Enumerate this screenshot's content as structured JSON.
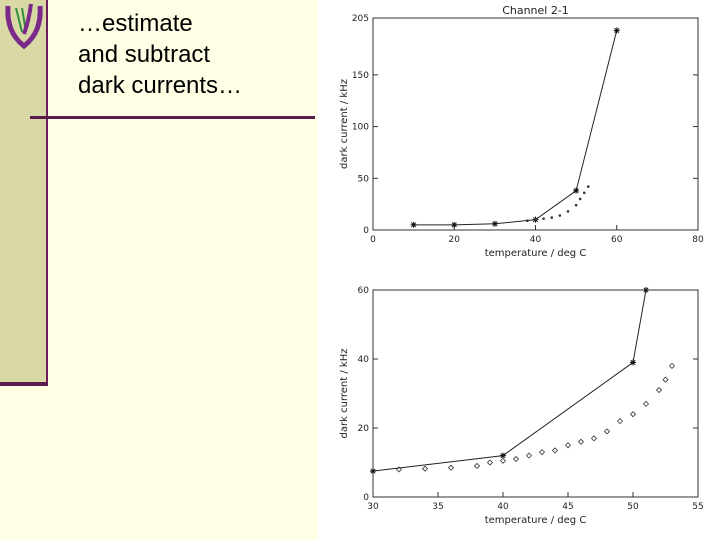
{
  "slide": {
    "lines": [
      "…estimate",
      "and subtract",
      "dark currents…"
    ]
  },
  "icons": {
    "logo": "university-shield-logo"
  },
  "colors": {
    "background": "#ffffe5",
    "sidebar": "#d9d9a6",
    "accent": "#5a1a4e"
  },
  "chart_data": [
    {
      "type": "scatter",
      "title": "Channel 2-1",
      "xlabel": "temperature / deg C",
      "ylabel": "dark current / kHz",
      "xlim": [
        0,
        80
      ],
      "ylim": [
        0,
        205
      ],
      "xticks": [
        0,
        20,
        40,
        60,
        80
      ],
      "xtick_labels": [
        "0",
        "20",
        "40",
        "60",
        "80"
      ],
      "yticks": [
        0,
        50,
        100,
        150,
        205
      ],
      "ytick_labels": [
        "0",
        "50",
        "100",
        "150",
        "205"
      ],
      "grid": false,
      "series": [
        {
          "marker": "asterisk",
          "line": true,
          "x": [
            10,
            20,
            30,
            40,
            50,
            60
          ],
          "y": [
            5,
            5,
            6,
            10,
            38,
            193
          ]
        },
        {
          "marker": "dot",
          "line": false,
          "x": [
            38,
            40,
            42,
            44,
            46,
            48,
            50,
            51,
            52,
            53
          ],
          "y": [
            9,
            10,
            11,
            12,
            14,
            18,
            24,
            30,
            36,
            42
          ]
        }
      ]
    },
    {
      "type": "scatter",
      "xlabel": "temperature / deg C",
      "ylabel": "dark current / kHz",
      "xlim": [
        30,
        55
      ],
      "ylim": [
        0,
        60
      ],
      "xticks": [
        30,
        35,
        40,
        45,
        50,
        55
      ],
      "xtick_labels": [
        "30",
        "35",
        "40",
        "45",
        "50",
        "55"
      ],
      "yticks": [
        0,
        20,
        40,
        60
      ],
      "ytick_labels": [
        "0",
        "20",
        "40",
        "60"
      ],
      "grid": false,
      "series": [
        {
          "marker": "asterisk",
          "line": true,
          "x": [
            30,
            40,
            50,
            51
          ],
          "y": [
            7.5,
            12,
            39,
            62
          ]
        },
        {
          "marker": "diamond",
          "line": false,
          "x": [
            32,
            34,
            36,
            38,
            39,
            40,
            41,
            42,
            43,
            44,
            45,
            46,
            47,
            48,
            49,
            50,
            51,
            52,
            52.5,
            53
          ],
          "y": [
            8,
            8.2,
            8.5,
            9,
            10,
            10.5,
            11,
            12,
            13,
            13.5,
            15,
            16,
            17,
            19,
            22,
            24,
            27,
            31,
            34,
            38
          ]
        }
      ]
    }
  ]
}
